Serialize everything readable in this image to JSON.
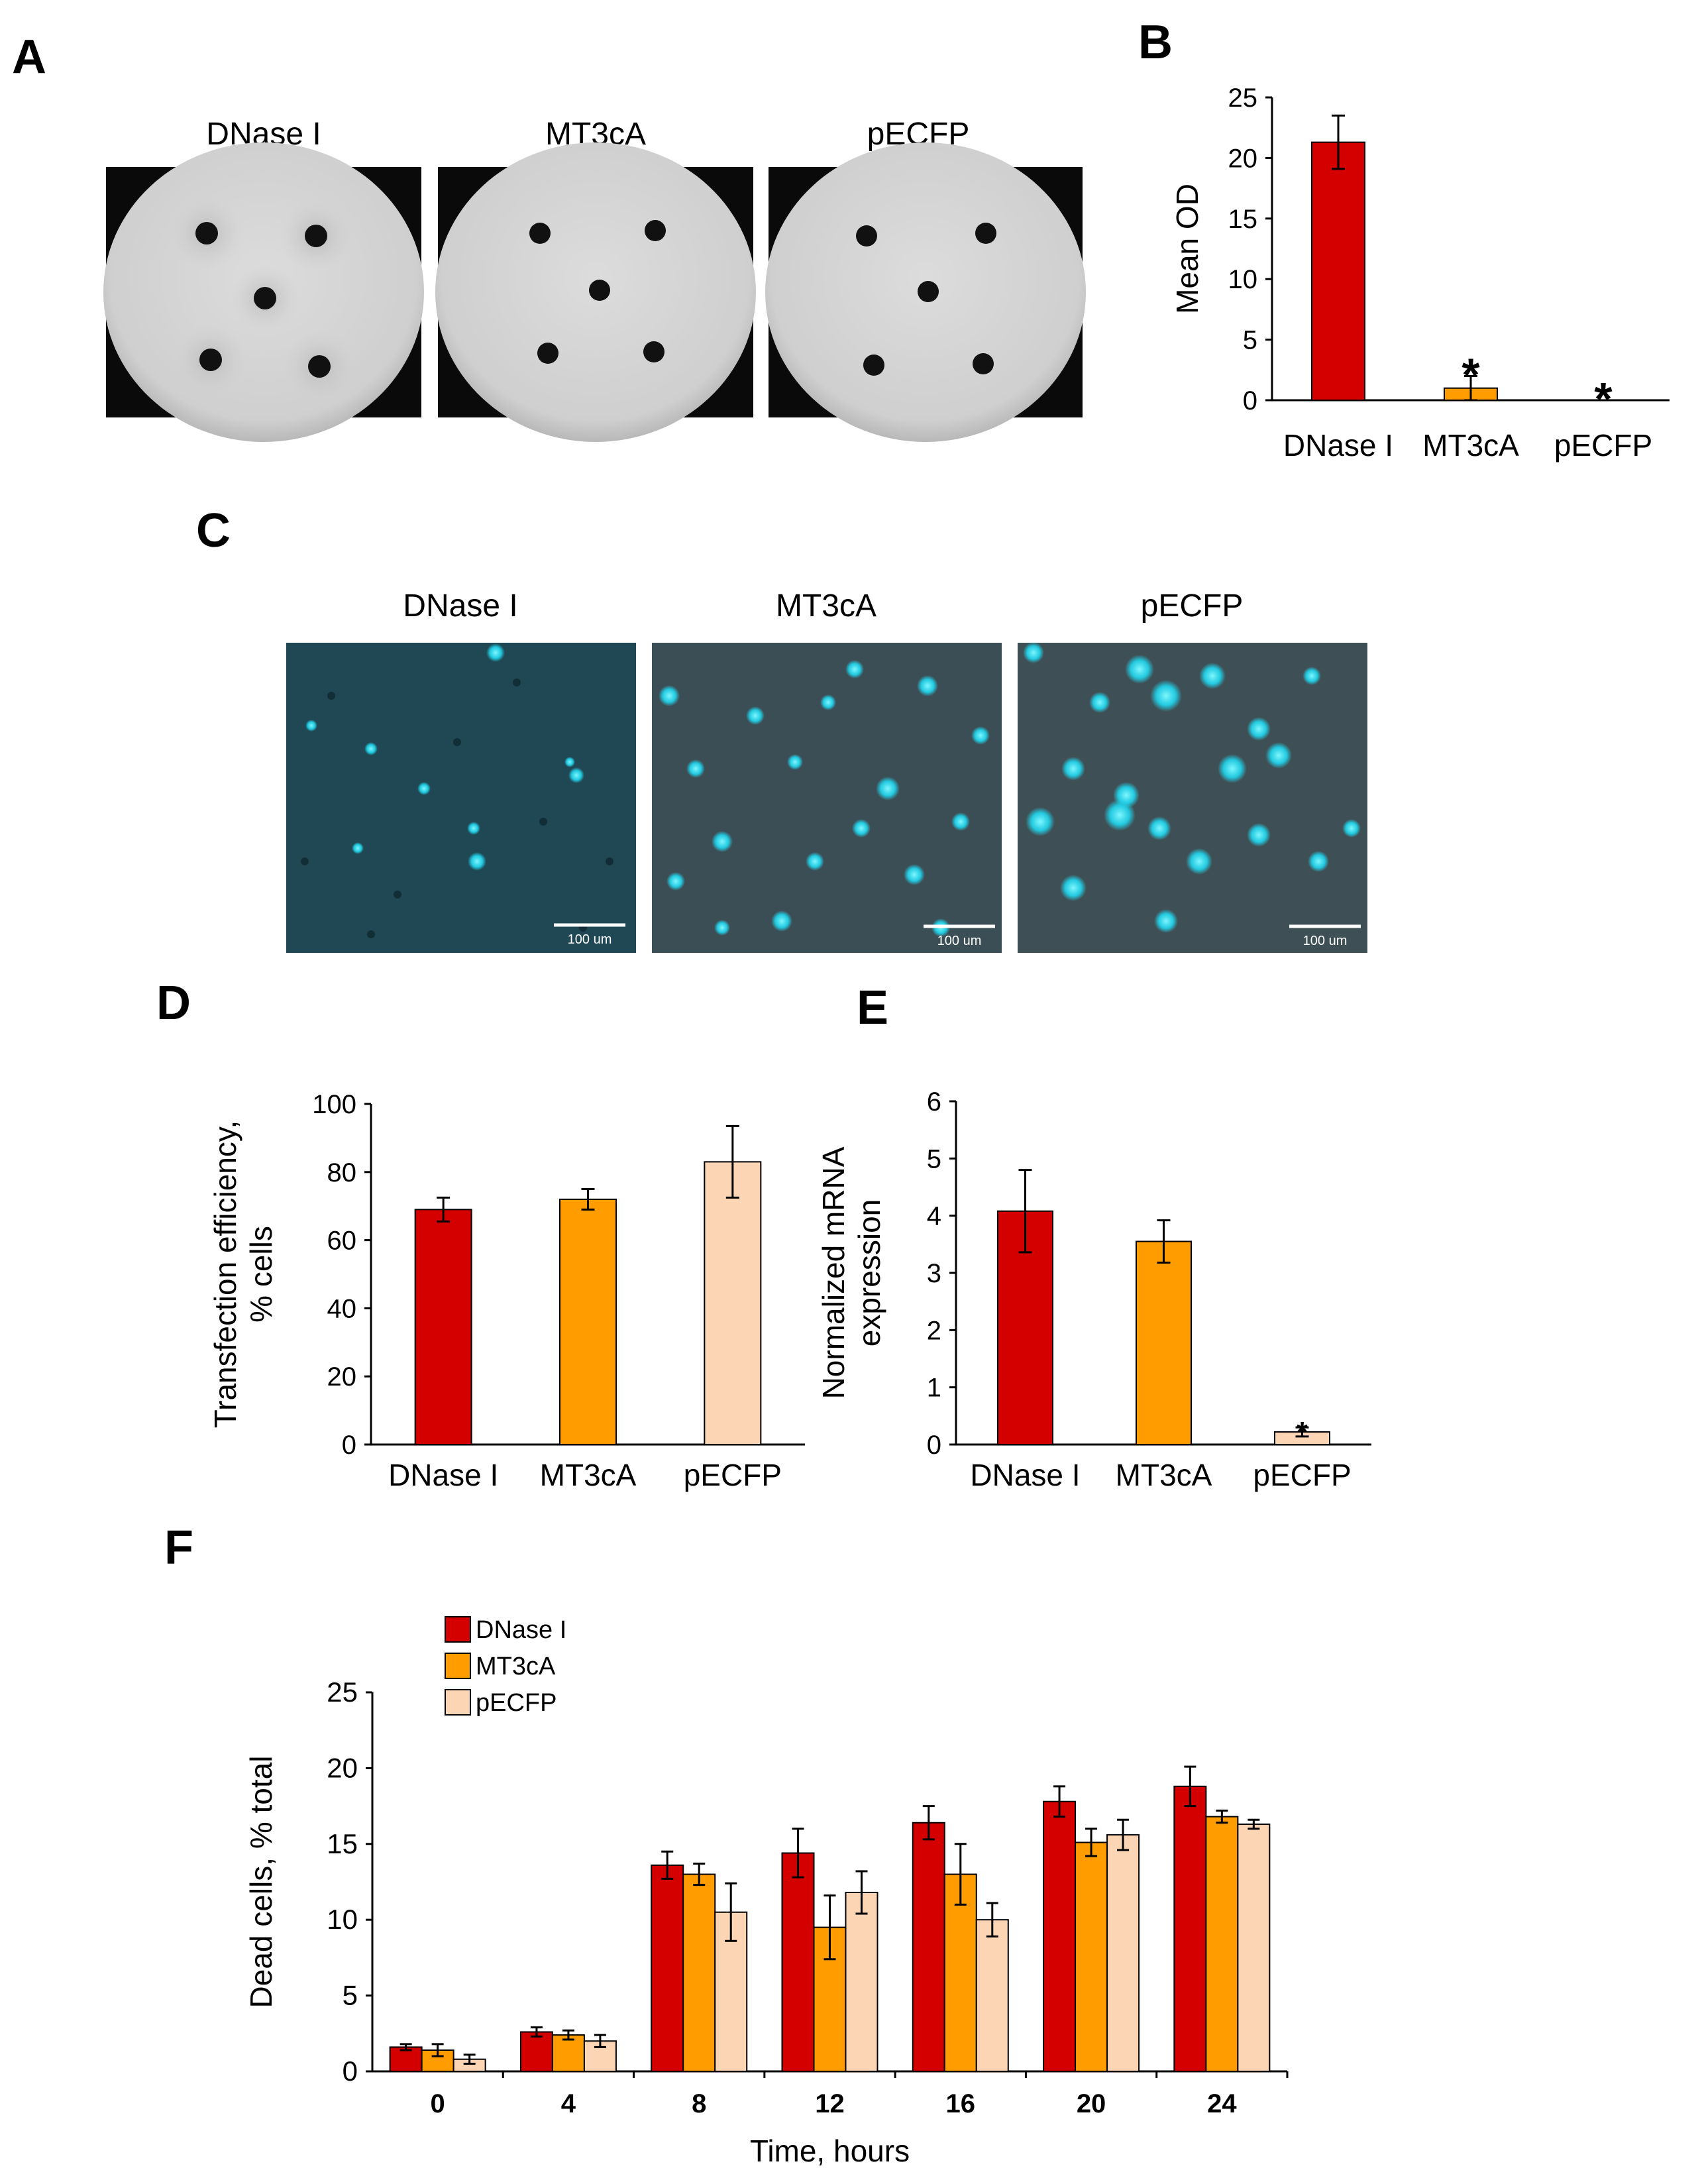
{
  "panels": {
    "A": {
      "letter": "A",
      "labels": [
        "DNase I",
        "MT3cA",
        "pECFP"
      ]
    },
    "B": {
      "letter": "B"
    },
    "C": {
      "letter": "C",
      "labels": [
        "DNase I",
        "MT3cA",
        "pECFP"
      ],
      "scale_bar": "100 um"
    },
    "D": {
      "letter": "D"
    },
    "E": {
      "letter": "E"
    },
    "F": {
      "letter": "F"
    }
  },
  "colors": {
    "DNase I": "#d40000",
    "MT3cA": "#ff9d00",
    "pECFP": "#fcd5b4"
  },
  "chart_data": [
    {
      "id": "B",
      "type": "bar",
      "categories": [
        "DNase I",
        "MT3cA",
        "pECFP"
      ],
      "values": [
        21.3,
        1.0,
        0
      ],
      "errors": [
        2.2,
        1.0,
        0
      ],
      "significance": [
        "",
        "*",
        "*"
      ],
      "ylabel": "Mean OD",
      "ylim": [
        0,
        25
      ],
      "yticks": [
        0,
        5,
        10,
        15,
        20,
        25
      ]
    },
    {
      "id": "D",
      "type": "bar",
      "categories": [
        "DNase I",
        "MT3cA",
        "pECFP"
      ],
      "values": [
        69,
        72,
        83
      ],
      "errors": [
        3.5,
        3,
        10.5
      ],
      "significance": [
        "",
        "",
        ""
      ],
      "ylabel": "Transfection efficiency,\n% cells",
      "ylim": [
        0,
        100
      ],
      "yticks": [
        0,
        20,
        40,
        60,
        80,
        100
      ]
    },
    {
      "id": "E",
      "type": "bar",
      "categories": [
        "DNase I",
        "MT3cA",
        "pECFP"
      ],
      "values": [
        4.08,
        3.55,
        0.22
      ],
      "errors": [
        0.72,
        0.37,
        0.08
      ],
      "significance": [
        "",
        "",
        "*"
      ],
      "ylabel": "Normalized mRNA\nexpression",
      "ylim": [
        0,
        6
      ],
      "yticks": [
        0,
        1,
        2,
        3,
        4,
        5,
        6
      ]
    },
    {
      "id": "F",
      "type": "bar",
      "categories": [
        "0",
        "4",
        "8",
        "12",
        "16",
        "20",
        "24"
      ],
      "series": [
        {
          "name": "DNase I",
          "values": [
            1.6,
            2.6,
            13.6,
            14.4,
            16.4,
            17.8,
            18.8
          ],
          "errors": [
            0.2,
            0.3,
            0.9,
            1.6,
            1.1,
            1.0,
            1.3
          ]
        },
        {
          "name": "MT3cA",
          "values": [
            1.4,
            2.4,
            13.0,
            9.5,
            13.0,
            15.1,
            16.8
          ],
          "errors": [
            0.4,
            0.3,
            0.7,
            2.1,
            2.0,
            0.9,
            0.4
          ]
        },
        {
          "name": "pECFP",
          "values": [
            0.8,
            2.0,
            10.5,
            11.8,
            10.0,
            15.6,
            16.3
          ],
          "errors": [
            0.3,
            0.4,
            1.9,
            1.4,
            1.1,
            1.0,
            0.3
          ]
        }
      ],
      "xlabel": "Time, hours",
      "ylabel": "Dead cells, % total",
      "ylim": [
        0,
        25
      ],
      "yticks": [
        0,
        5,
        10,
        15,
        20,
        25
      ],
      "legend": "top-left"
    }
  ]
}
